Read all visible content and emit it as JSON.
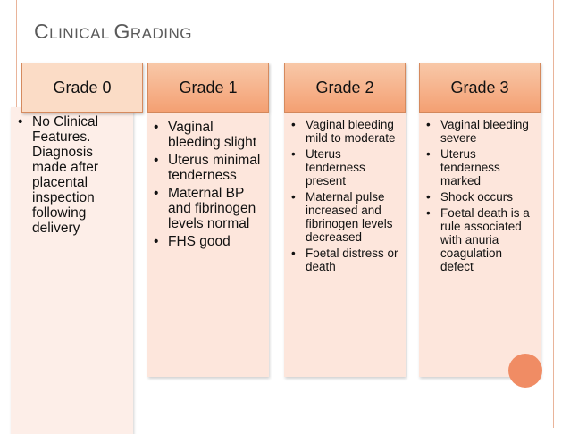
{
  "slide": {
    "title_parts": [
      {
        "text": "C",
        "small": false
      },
      {
        "text": "LINICAL ",
        "small": true
      },
      {
        "text": "G",
        "small": false
      },
      {
        "text": "RADING",
        "small": true
      }
    ]
  },
  "columns": [
    {
      "header": "Grade 0",
      "items": [
        "No Clinical Features. Diagnosis made after placental inspection following delivery"
      ]
    },
    {
      "header": "Grade 1",
      "items": [
        "Vaginal bleeding slight",
        "Uterus minimal tenderness",
        "Maternal BP and fibrinogen levels normal",
        "FHS good"
      ]
    },
    {
      "header": "Grade 2",
      "items": [
        "Vaginal bleeding mild to moderate",
        "Uterus tenderness present",
        "Maternal pulse increased and fibrinogen levels decreased",
        "Foetal distress or death"
      ]
    },
    {
      "header": "Grade 3",
      "items": [
        "Vaginal bleeding severe",
        "Uterus tenderness marked",
        "Shock occurs",
        "Foetal death is a rule associated with anuria coagulation defect"
      ]
    }
  ],
  "colors": {
    "accent": "#f4a073",
    "panel": "#fde6dc",
    "frame": "#e9b49a"
  }
}
